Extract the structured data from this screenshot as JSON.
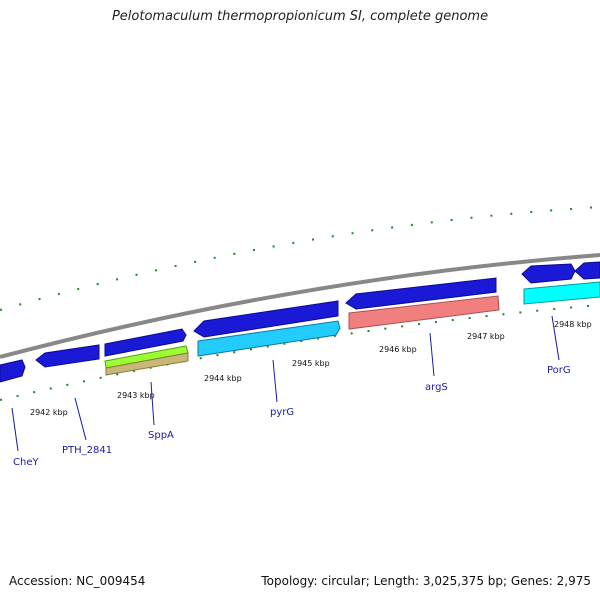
{
  "title": "Pelotomaculum thermopropionicum SI, complete genome",
  "footer": {
    "accession": "Accession: NC_009454",
    "summary": "Topology: circular; Length: 3,025,375 bp; Genes: 2,975"
  },
  "colors": {
    "forward_gene": "#1a1ad6",
    "reverse_gene_light": "#22ccff",
    "reverse_gene_cyan": "#00ffff",
    "rna_green": "#99ff33",
    "rna_khaki": "#c8b878",
    "rna_salmon": "#f08080",
    "tick_green": "#1a8a1a",
    "backbone": "#888888",
    "label_blue": "#1a1aa6"
  },
  "kbp_labels": [
    "2942 kbp",
    "2943 kbp",
    "2944 kbp",
    "2945 kbp",
    "2946 kbp",
    "2947 kbp",
    "2948 kbp"
  ],
  "gene_labels": [
    "CheY",
    "PTH_2841",
    "SppA",
    "pyrG",
    "argS",
    "PorG"
  ]
}
